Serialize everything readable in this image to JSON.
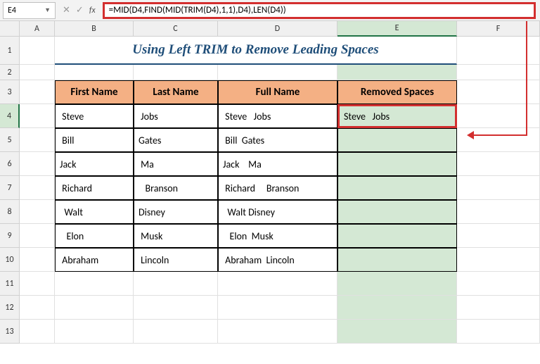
{
  "formula_bar": {
    "cell_reference": "E4",
    "formula": "=MID(D4,FIND(MID(TRIM(D4),1,1),D4),LEN(D4))"
  },
  "columns": [
    "A",
    "B",
    "C",
    "D",
    "E",
    "F"
  ],
  "row_numbers": [
    "1",
    "2",
    "3",
    "4",
    "5",
    "6",
    "7",
    "8",
    "9",
    "10",
    "11",
    "12",
    "13"
  ],
  "title": "Using Left TRIM to Remove Leading Spaces",
  "headers": {
    "first_name": "First Name",
    "last_name": "Last Name",
    "full_name": "Full Name",
    "removed_spaces": "Removed Spaces"
  },
  "data_rows": [
    {
      "first": " Steve",
      "last": " Jobs",
      "full": " Steve   Jobs",
      "removed": "Steve   Jobs"
    },
    {
      "first": " Bill",
      "last": "Gates",
      "full": " Bill  Gates",
      "removed": ""
    },
    {
      "first": "Jack",
      "last": " Ma",
      "full": "Jack    Ma",
      "removed": ""
    },
    {
      "first": " Richard",
      "last": "   Branson",
      "full": " Richard     Branson",
      "removed": ""
    },
    {
      "first": "  Walt",
      "last": "Disney",
      "full": "  Walt Disney",
      "removed": ""
    },
    {
      "first": "   Elon",
      "last": " Musk",
      "full": "   Elon  Musk",
      "removed": ""
    },
    {
      "first": " Abraham",
      "last": " Lincoln",
      "full": " Abraham  Lincoln",
      "removed": ""
    }
  ],
  "colors": {
    "highlight_border": "#d32f2f",
    "header_bg": "#f4b084",
    "title_color": "#1f4e79",
    "active_col_bg": "#d4e8d4",
    "excel_green": "#217346"
  }
}
